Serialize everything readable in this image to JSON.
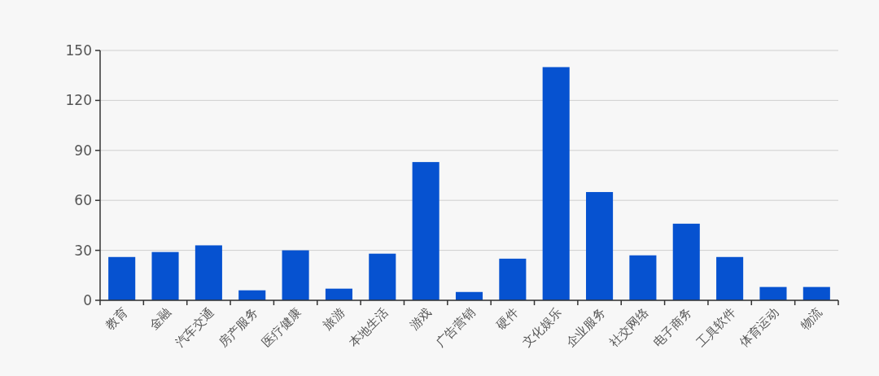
{
  "chart_data": {
    "type": "bar",
    "categories": [
      "教育",
      "金融",
      "汽车交通",
      "房产服务",
      "医疗健康",
      "旅游",
      "本地生活",
      "游戏",
      "广告营销",
      "硬件",
      "文化娱乐",
      "企业服务",
      "社交网络",
      "电子商务",
      "工具软件",
      "体育运动",
      "物流"
    ],
    "values": [
      26,
      29,
      33,
      6,
      30,
      7,
      28,
      83,
      5,
      25,
      140,
      65,
      27,
      46,
      26,
      8,
      8
    ],
    "color": "#0652d0",
    "ylim": [
      0,
      150
    ],
    "yticks": [
      0,
      30,
      60,
      90,
      120,
      150
    ],
    "grid": "y"
  }
}
